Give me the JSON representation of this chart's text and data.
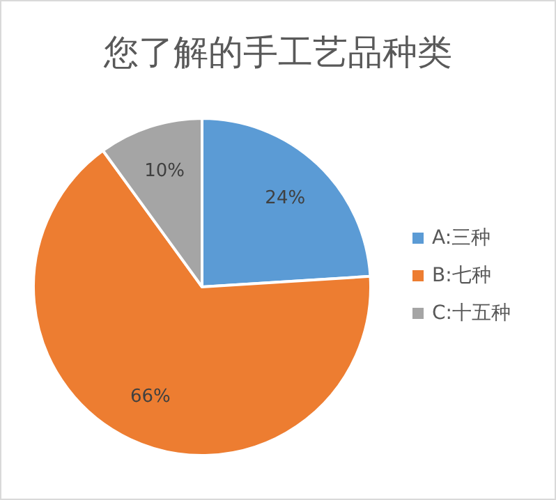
{
  "chart_data": {
    "type": "pie",
    "title": "您了解的手工艺品种类",
    "categories": [
      "A:三种",
      "B:七种",
      "C:十五种"
    ],
    "values": [
      24,
      66,
      10
    ],
    "colors": [
      "#5b9bd5",
      "#ed7d31",
      "#a5a5a5"
    ],
    "value_labels": [
      "24%",
      "66%",
      "10%"
    ],
    "legend": "right"
  }
}
